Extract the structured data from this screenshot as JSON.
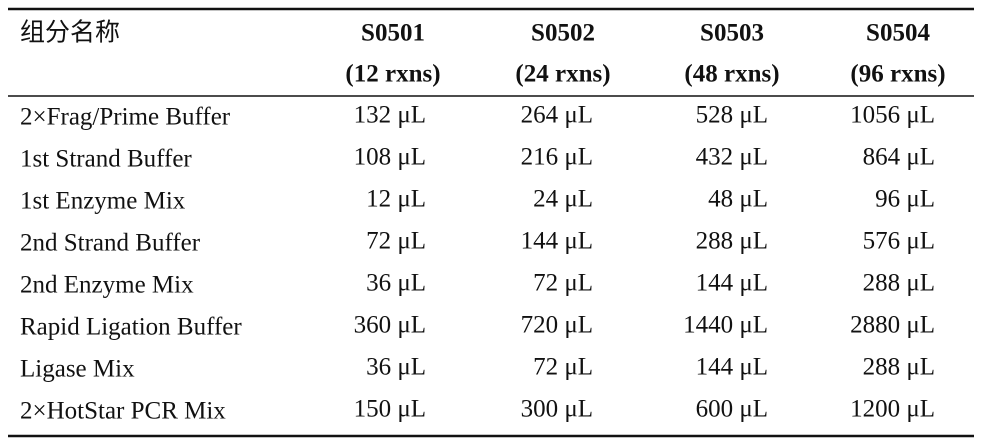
{
  "table": {
    "header": {
      "label": "组分名称",
      "columns": [
        {
          "code": "S0501",
          "note": "(12 rxns)"
        },
        {
          "code": "S0502",
          "note": "(24 rxns)"
        },
        {
          "code": "S0503",
          "note": "(48 rxns)"
        },
        {
          "code": "S0504",
          "note": "(96 rxns)"
        }
      ]
    },
    "rows": [
      [
        "2×Frag/Prime Buffer",
        "132 μL",
        "264 μL",
        "528 μL",
        "1056 μL"
      ],
      [
        "1st Strand Buffer",
        "108 μL",
        "216 μL",
        "432 μL",
        "864 μL"
      ],
      [
        "1st Enzyme Mix",
        "12 μL",
        "24 μL",
        "48 μL",
        "96 μL"
      ],
      [
        "2nd Strand Buffer",
        "72 μL",
        "144 μL",
        "288 μL",
        "576 μL"
      ],
      [
        "2nd Enzyme Mix",
        "36 μL",
        "72 μL",
        "144 μL",
        "288 μL"
      ],
      [
        "Rapid Ligation Buffer",
        "360 μL",
        "720 μL",
        "1440 μL",
        "2880 μL"
      ],
      [
        "Ligase Mix",
        "36 μL",
        "72 μL",
        "144 μL",
        "288 μL"
      ],
      [
        "2×HotStar PCR Mix",
        "150 μL",
        "300 μL",
        "600 μL",
        "1200 μL"
      ]
    ]
  }
}
